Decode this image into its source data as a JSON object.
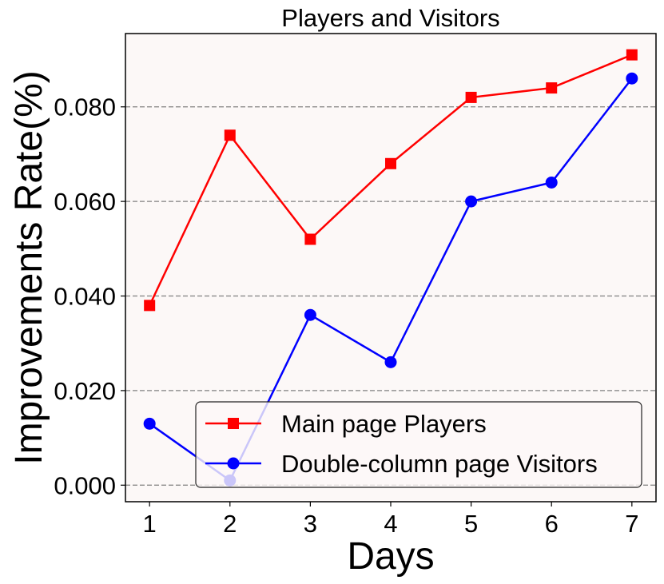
{
  "chart_data": {
    "type": "line",
    "title": "Players and Visitors",
    "xlabel": "Days",
    "ylabel": "Improvements Rate(%)",
    "x": [
      1,
      2,
      3,
      4,
      5,
      6,
      7
    ],
    "x_tick_labels": [
      "1",
      "2",
      "3",
      "4",
      "5",
      "6",
      "7"
    ],
    "xlim": [
      0.7,
      7.3
    ],
    "ylim": [
      -0.0035,
      0.0955
    ],
    "y_ticks": [
      0.0,
      0.02,
      0.04,
      0.06,
      0.08
    ],
    "y_tick_labels": [
      "0.000",
      "0.020",
      "0.040",
      "0.060",
      "0.080"
    ],
    "grid": "horizontal dashed",
    "legend_position": "lower-right",
    "background": "#fcf8f7",
    "series": [
      {
        "name": "Main page Players",
        "color": "#ff0000",
        "marker": "square",
        "values": [
          0.038,
          0.074,
          0.052,
          0.068,
          0.082,
          0.084,
          0.091
        ]
      },
      {
        "name": "Double-column page Visitors",
        "color": "#0000ff",
        "marker": "circle",
        "values": [
          0.013,
          0.001,
          0.036,
          0.026,
          0.06,
          0.064,
          0.086
        ]
      }
    ]
  }
}
